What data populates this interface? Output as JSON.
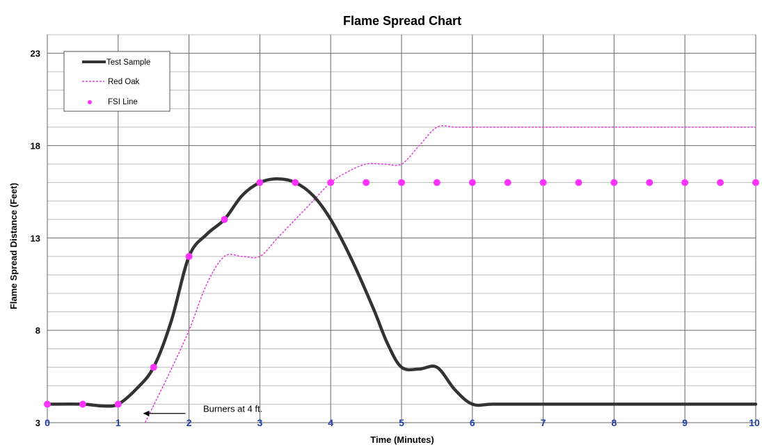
{
  "chart_data": {
    "type": "line",
    "title": "Flame Spread Chart",
    "xlabel": "Time (Minutes)",
    "ylabel": "Flame Spread Distance (Feet)",
    "xlim": [
      0,
      10
    ],
    "ylim": [
      3,
      24
    ],
    "xticks": [
      "0",
      "1",
      "2",
      "3",
      "4",
      "5",
      "6",
      "7",
      "8",
      "9",
      "10"
    ],
    "yticks": [
      "3",
      "8",
      "13",
      "18",
      "23"
    ],
    "grid": true,
    "legend_position": "top-left",
    "series": [
      {
        "name": "Test Sample",
        "style": "solid",
        "color": "#333333",
        "x": [
          0,
          0.5,
          0.8,
          1.0,
          1.25,
          1.5,
          1.75,
          2.0,
          2.25,
          2.5,
          2.75,
          3.0,
          3.25,
          3.5,
          3.75,
          4.0,
          4.3,
          4.6,
          4.8,
          5.0,
          5.25,
          5.5,
          5.75,
          6.0,
          6.3,
          7.0,
          8.0,
          9.0,
          10.0
        ],
        "y": [
          4,
          4,
          3.9,
          4,
          4.8,
          6,
          8.5,
          12,
          13.2,
          14,
          15.3,
          16,
          16.2,
          16,
          15.3,
          14,
          11.8,
          9.2,
          7.3,
          6,
          5.9,
          6,
          4.8,
          4,
          4,
          4,
          4,
          4,
          4
        ]
      },
      {
        "name": "Red Oak",
        "style": "dashed",
        "color": "#e040d8",
        "x": [
          1.38,
          1.7,
          2.0,
          2.25,
          2.5,
          2.75,
          3.0,
          3.25,
          3.5,
          3.75,
          4.0,
          4.25,
          4.5,
          4.75,
          5.0,
          5.25,
          5.5,
          5.75,
          6.0,
          7.0,
          8.0,
          9.0,
          10.0
        ],
        "y": [
          3,
          5.5,
          8,
          10.5,
          12,
          12,
          12,
          13,
          14,
          15,
          16,
          16.6,
          17,
          17,
          17,
          18,
          19,
          19,
          19,
          19,
          19,
          19,
          19
        ]
      },
      {
        "name": "FSI Line",
        "style": "markers",
        "color": "#ff33ff",
        "x": [
          0,
          0.5,
          1.0,
          1.5,
          2.0,
          2.5,
          3.0,
          3.5,
          4.0,
          4.5,
          5.0,
          5.5,
          6.0,
          6.5,
          7.0,
          7.5,
          8.0,
          8.5,
          9.0,
          9.5,
          10.0
        ],
        "y": [
          4,
          4,
          4,
          6,
          12,
          14,
          16,
          16,
          16,
          16,
          16,
          16,
          16,
          16,
          16,
          16,
          16,
          16,
          16,
          16,
          16
        ]
      }
    ],
    "annotations": [
      {
        "text": "Burners at 4 ft.",
        "x": 2.2,
        "y": 3.5,
        "arrow_from": [
          1.95,
          3.5
        ],
        "arrow_to": [
          1.35,
          3.5
        ]
      }
    ]
  }
}
